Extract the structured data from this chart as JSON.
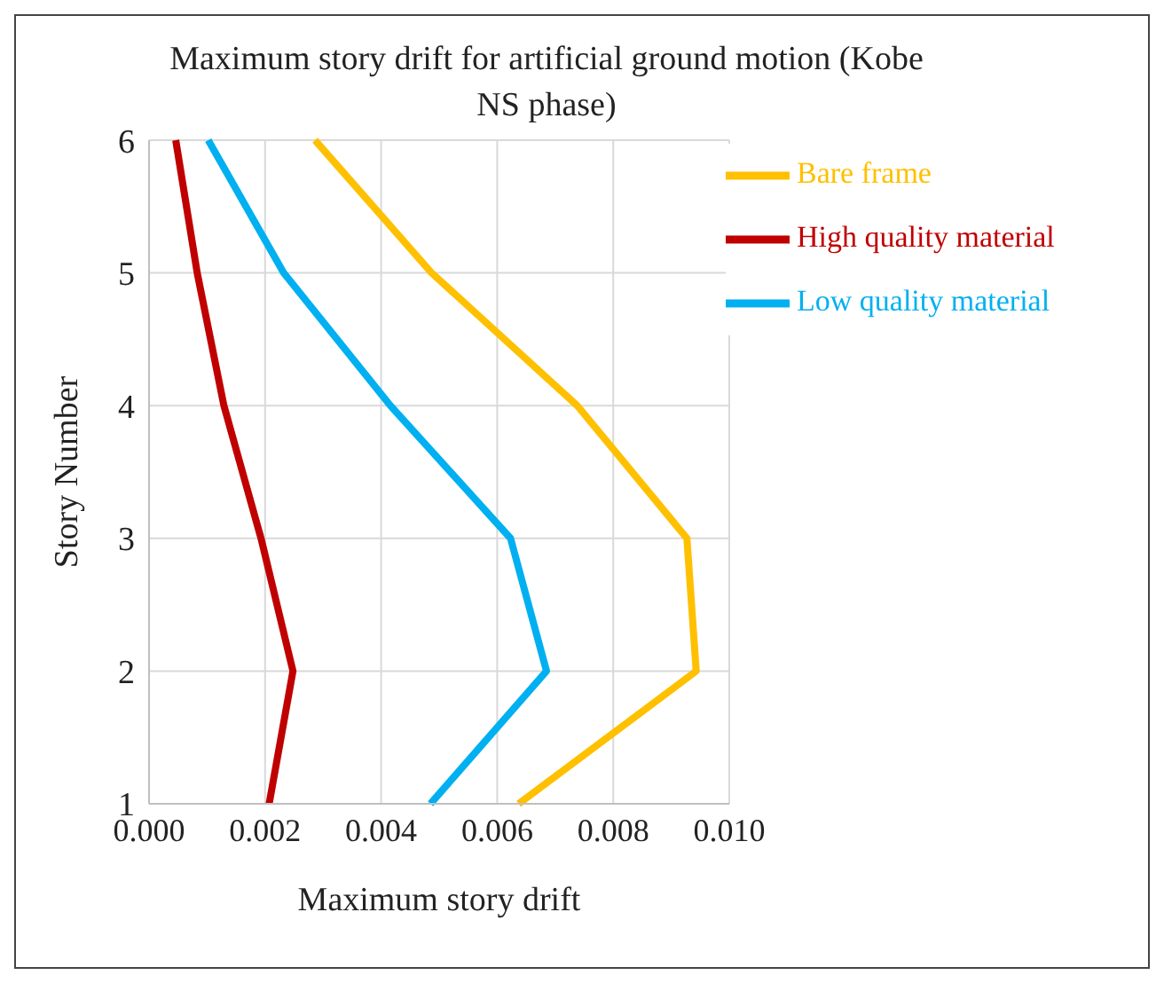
{
  "chart_data": {
    "type": "line",
    "title": "Maximum story drift for artificial ground motion (Kobe NS phase)",
    "xlabel": "Maximum story drift",
    "ylabel": "Story Number",
    "orientation": "horizontal",
    "categories": [
      "6",
      "5",
      "4",
      "3",
      "2",
      "1"
    ],
    "series": [
      {
        "name": "High quality material",
        "color": "#c00000",
        "values": [
          0.00046,
          0.00083,
          0.00129,
          0.00193,
          0.00248,
          0.00207
        ]
      },
      {
        "name": "Low quality material",
        "color": "#00b0f0",
        "values": [
          0.00102,
          0.00232,
          0.00416,
          0.00623,
          0.00685,
          0.00485
        ]
      },
      {
        "name": "Bare frame",
        "color": "#ffc000",
        "values": [
          0.00286,
          0.00487,
          0.00738,
          0.00927,
          0.00943,
          0.00637
        ]
      }
    ],
    "xlim": [
      0,
      0.01
    ],
    "xticks": [
      {
        "value": 0,
        "label": "0.000"
      },
      {
        "value": 0.002,
        "label": "0.002"
      },
      {
        "value": 0.004,
        "label": "0.004"
      },
      {
        "value": 0.006,
        "label": "0.006"
      },
      {
        "value": 0.008,
        "label": "0.008"
      },
      {
        "value": 0.01,
        "label": "0.010"
      }
    ],
    "grid": true,
    "legend": "top right",
    "marker": "none",
    "line_style": "solid"
  }
}
